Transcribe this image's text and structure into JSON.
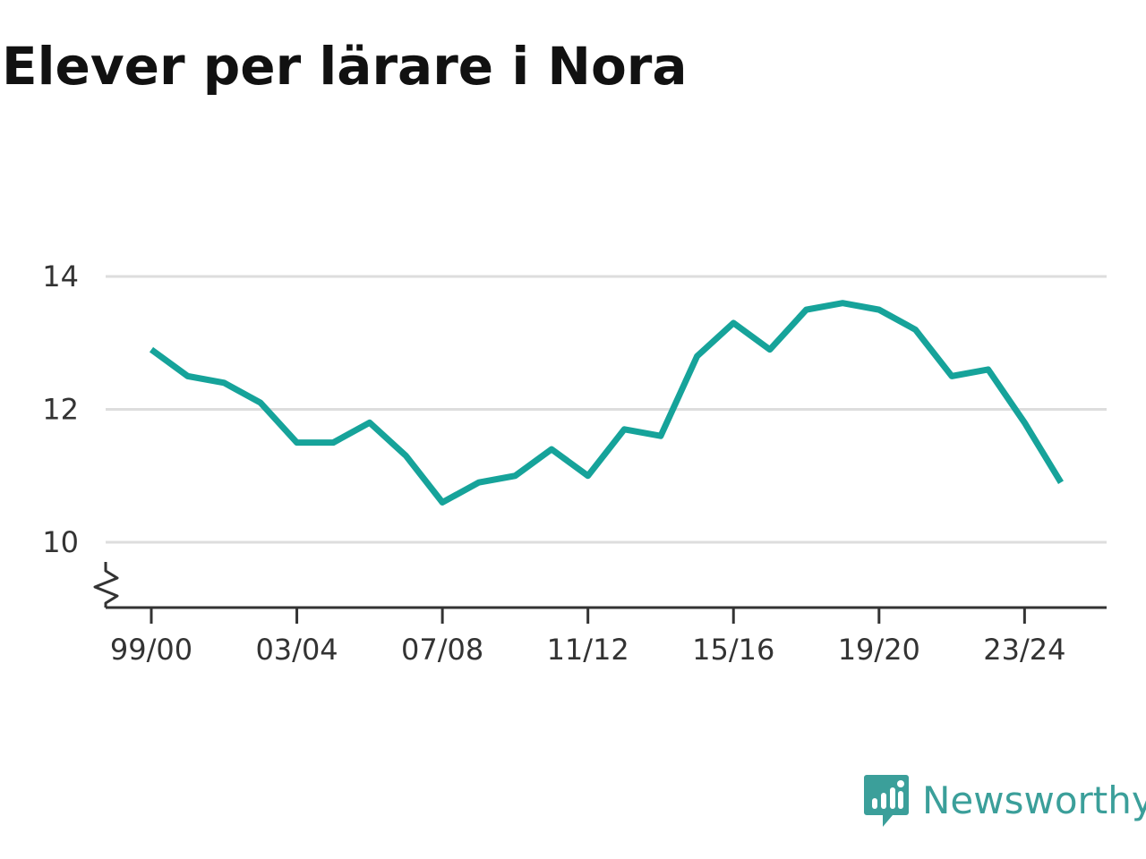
{
  "title": "Elever per lärare i Nora",
  "brand": {
    "name": "Newsworthy",
    "color": "#3b9f9a",
    "icon": "newsworthy-logo-icon"
  },
  "colors": {
    "line": "#16a39a",
    "grid": "#dddddd",
    "axis": "#333333"
  },
  "chart_data": {
    "type": "line",
    "title": "Elever per lärare i Nora",
    "xlabel": "",
    "ylabel": "",
    "ylim": [
      9.0,
      14.4
    ],
    "yticks": [
      10,
      12,
      14
    ],
    "axis_break": true,
    "grid": true,
    "x": [
      "99/00",
      "00/01",
      "01/02",
      "02/03",
      "03/04",
      "04/05",
      "05/06",
      "06/07",
      "07/08",
      "08/09",
      "09/10",
      "10/11",
      "11/12",
      "12/13",
      "13/14",
      "14/15",
      "15/16",
      "16/17",
      "17/18",
      "18/19",
      "19/20",
      "20/21",
      "21/22",
      "22/23",
      "23/24",
      "24/25"
    ],
    "xtick_labels": [
      "99/00",
      "03/04",
      "07/08",
      "11/12",
      "15/16",
      "19/20",
      "23/24"
    ],
    "series": [
      {
        "values": [
          12.9,
          12.5,
          12.4,
          12.1,
          11.5,
          11.5,
          11.8,
          11.3,
          10.6,
          10.9,
          11.0,
          11.4,
          11.0,
          11.7,
          11.6,
          12.8,
          13.3,
          12.9,
          13.5,
          13.6,
          13.5,
          13.2,
          12.5,
          12.6,
          11.8,
          10.9
        ]
      }
    ]
  }
}
